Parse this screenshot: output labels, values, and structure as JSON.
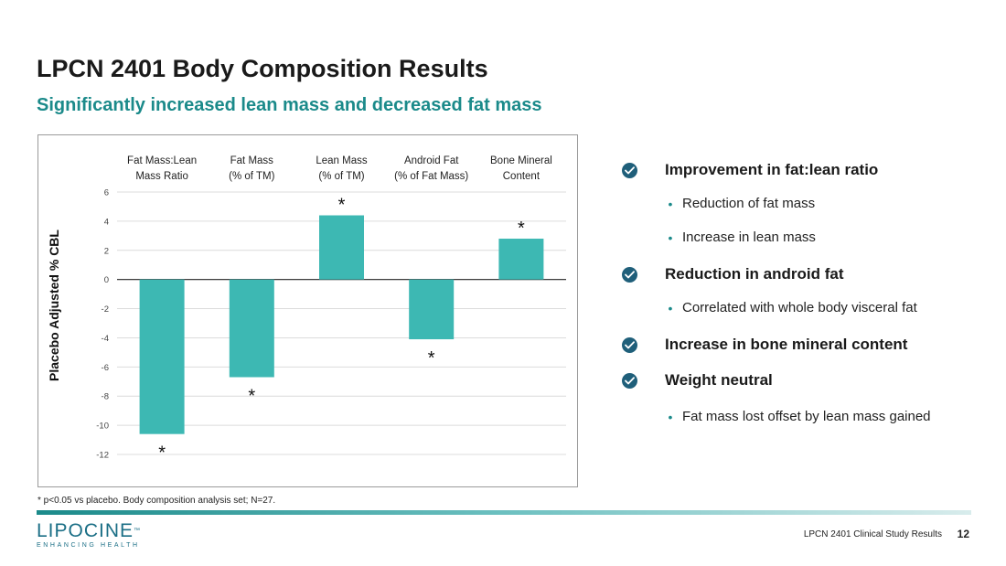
{
  "title": "LPCN 2401 Body Composition Results",
  "subtitle": "Significantly increased lean mass and decreased fat mass",
  "chart_data": {
    "type": "bar",
    "categories": [
      [
        "Fat Mass:Lean",
        "Mass Ratio"
      ],
      [
        "Fat Mass",
        "(% of TM)"
      ],
      [
        "Lean Mass",
        "(% of TM)"
      ],
      [
        "Android Fat",
        "(% of Fat Mass)"
      ],
      [
        "Bone Mineral",
        "Content"
      ]
    ],
    "values": [
      -10.6,
      -6.7,
      4.4,
      -4.1,
      2.8
    ],
    "significant": [
      true,
      true,
      true,
      true,
      true
    ],
    "significance_marker": "*",
    "ylabel": "Placebo Adjusted % CBL",
    "ylim": [
      -12,
      6
    ],
    "yticks": [
      6,
      4,
      2,
      0,
      -2,
      -4,
      -6,
      -8,
      -10,
      -12
    ],
    "grid": true,
    "bar_color": "#3db8b3",
    "category_label_position": "top"
  },
  "footnote": "* p<0.05 vs placebo. Body composition analysis set; N=27.",
  "bullets": [
    {
      "kind": "main",
      "text": "Improvement in fat:lean ratio",
      "icon": "check-circle-icon"
    },
    {
      "kind": "sub",
      "text": "Reduction of fat mass",
      "marker": "•"
    },
    {
      "kind": "sub",
      "text": "Increase in lean mass",
      "marker": "•"
    },
    {
      "kind": "main",
      "text": "Reduction in android fat",
      "icon": "check-circle-icon"
    },
    {
      "kind": "sub",
      "text": "Correlated with whole body visceral fat",
      "marker": "•"
    },
    {
      "kind": "main",
      "text": "Increase in bone mineral content",
      "icon": "check-circle-icon"
    },
    {
      "kind": "main",
      "text": "Weight neutral",
      "icon": "check-circle-icon"
    },
    {
      "kind": "sub",
      "text": "Fat mass lost offset by lean mass gained",
      "marker": "•"
    }
  ],
  "logo": {
    "name": "LIPOCINE",
    "trademark": "™",
    "tagline": "ENHANCING HEALTH"
  },
  "footer": {
    "text": "LPCN 2401 Clinical Study Results",
    "page": "12"
  },
  "colors": {
    "accent": "#1b8a8a",
    "check": "#1f5f7a",
    "bar": "#3db8b3"
  }
}
